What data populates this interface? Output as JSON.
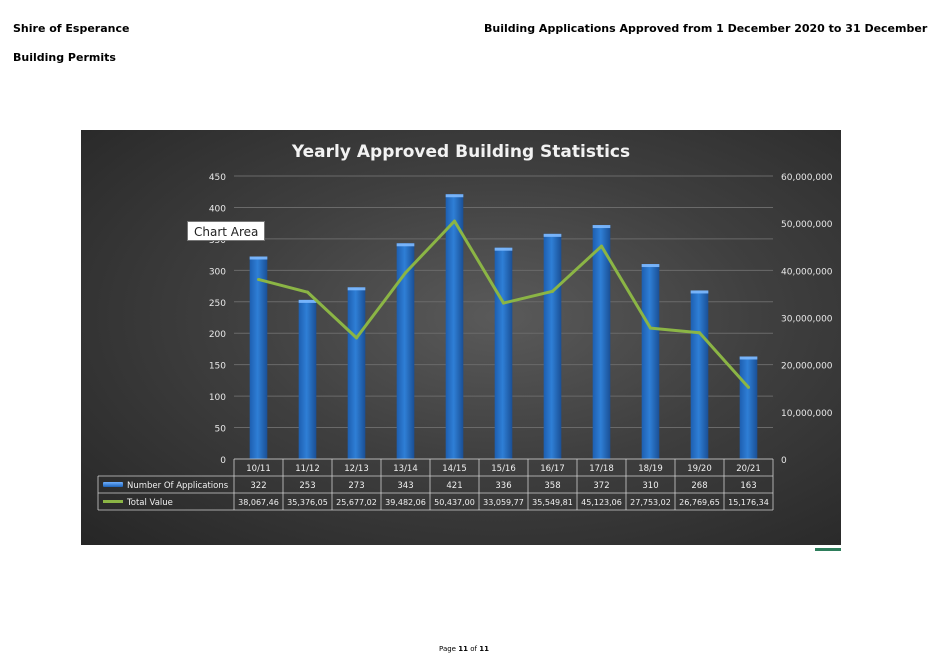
{
  "header": {
    "organisation": "Shire of Esperance",
    "report_title": "Building Applications Approved from 1 December 2020 to 31 December",
    "section": "Building Permits"
  },
  "tooltip": "Chart Area",
  "footer": {
    "prefix": "Page",
    "page": "11",
    "of": "of",
    "total": "11"
  },
  "colors": {
    "bar": "#2f7fd6",
    "line": "#8bb545",
    "background": "#3a3a3a"
  },
  "chart_data": {
    "type": "bar",
    "title": "Yearly Approved Building Statistics",
    "categories": [
      "10/11",
      "11/12",
      "12/13",
      "13/14",
      "14/15",
      "15/16",
      "16/17",
      "17/18",
      "18/19",
      "19/20",
      "20/21"
    ],
    "y_left": {
      "ticks": [
        "0",
        "50",
        "100",
        "150",
        "200",
        "250",
        "300",
        "350",
        "400",
        "450"
      ],
      "ylim": [
        0,
        450
      ]
    },
    "y_right": {
      "ticks": [
        "0",
        "10,000,000",
        "20,000,000",
        "30,000,000",
        "40,000,000",
        "50,000,000",
        "60,000,000"
      ],
      "ylim": [
        0,
        60000000
      ]
    },
    "grid": true,
    "legend_placement": "data-table",
    "series": [
      {
        "name": "Number Of Applications",
        "type": "bar",
        "axis": "left",
        "values": [
          322,
          253,
          273,
          343,
          421,
          336,
          358,
          372,
          310,
          268,
          163
        ],
        "labels": [
          "322",
          "253",
          "273",
          "343",
          "421",
          "336",
          "358",
          "372",
          "310",
          "268",
          "163"
        ]
      },
      {
        "name": "Total Value",
        "type": "line",
        "axis": "right",
        "values": [
          38067460,
          35376050,
          25677020,
          39482060,
          50437000,
          33059770,
          35549810,
          45123060,
          27753020,
          26769650,
          15176340
        ],
        "labels": [
          "38,067,46",
          "35,376,05",
          "25,677,02",
          "39,482,06",
          "50,437,00",
          "33,059,77",
          "35,549,81",
          "45,123,06",
          "27,753,02",
          "26,769,65",
          "15,176,34"
        ]
      }
    ]
  }
}
